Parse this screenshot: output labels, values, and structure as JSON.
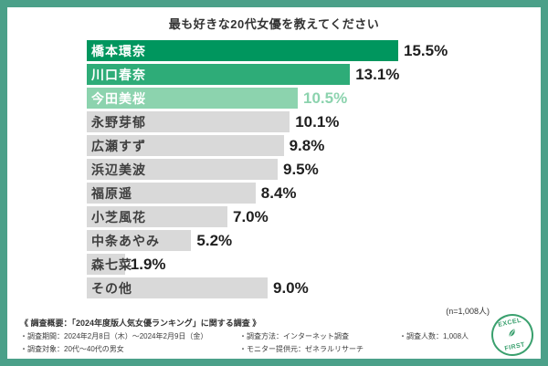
{
  "frame": {
    "border_color": "#4BA089"
  },
  "title": "最も好きな20代女優を教えてください",
  "chart_data": {
    "type": "bar",
    "orientation": "horizontal",
    "title": "最も好きな20代女優を教えてください",
    "unit": "%",
    "xlim": [
      0,
      16
    ],
    "sample_note": "(n=1,008人)",
    "items": [
      {
        "name": "橋本環奈",
        "value": 15.5,
        "label": "15.5%",
        "bar_color": "#00965E",
        "name_color": "#ffffff",
        "value_color": "#1f1f1f"
      },
      {
        "name": "川口春奈",
        "value": 13.1,
        "label": "13.1%",
        "bar_color": "#2EAC78",
        "name_color": "#ffffff",
        "value_color": "#1f1f1f"
      },
      {
        "name": "今田美桜",
        "value": 10.5,
        "label": "10.5%",
        "bar_color": "#8CD3AE",
        "name_color": "#ffffff",
        "value_color": "#8CD3AE"
      },
      {
        "name": "永野芽郁",
        "value": 10.1,
        "label": "10.1%",
        "bar_color": "#D9D9D9",
        "name_color": "#3f3f3f",
        "value_color": "#1f1f1f"
      },
      {
        "name": "広瀬すず",
        "value": 9.8,
        "label": "9.8%",
        "bar_color": "#D9D9D9",
        "name_color": "#3f3f3f",
        "value_color": "#1f1f1f"
      },
      {
        "name": "浜辺美波",
        "value": 9.5,
        "label": "9.5%",
        "bar_color": "#D9D9D9",
        "name_color": "#3f3f3f",
        "value_color": "#1f1f1f"
      },
      {
        "name": "福原遥",
        "value": 8.4,
        "label": "8.4%",
        "bar_color": "#D9D9D9",
        "name_color": "#3f3f3f",
        "value_color": "#1f1f1f"
      },
      {
        "name": "小芝風花",
        "value": 7.0,
        "label": "7.0%",
        "bar_color": "#D9D9D9",
        "name_color": "#3f3f3f",
        "value_color": "#1f1f1f"
      },
      {
        "name": "中条あやみ",
        "value": 5.2,
        "label": "5.2%",
        "bar_color": "#D9D9D9",
        "name_color": "#3f3f3f",
        "value_color": "#1f1f1f"
      },
      {
        "name": "森七菜",
        "value": 1.9,
        "label": "1.9%",
        "bar_color": "#D9D9D9",
        "name_color": "#3f3f3f",
        "value_color": "#1f1f1f"
      },
      {
        "name": "その他",
        "value": 9.0,
        "label": "9.0%",
        "bar_color": "#D9D9D9",
        "name_color": "#3f3f3f",
        "value_color": "#1f1f1f"
      }
    ]
  },
  "footer": {
    "heading": "《 調査概要：「2024年度版人気女優ランキング」に関する調査 》",
    "rows": [
      [
        "・調査期間：2024年2月8日（木）〜2024年2月9日（金）",
        "・調査方法：インターネット調査",
        "・調査人数：1,008人"
      ],
      [
        "・調査対象：20代〜40代の男女",
        "・モニター提供元：ゼネラルリサーチ",
        ""
      ]
    ]
  },
  "logo": {
    "top": "EXCEL",
    "bottom": "FIRST",
    "color": "#3AA06E"
  }
}
